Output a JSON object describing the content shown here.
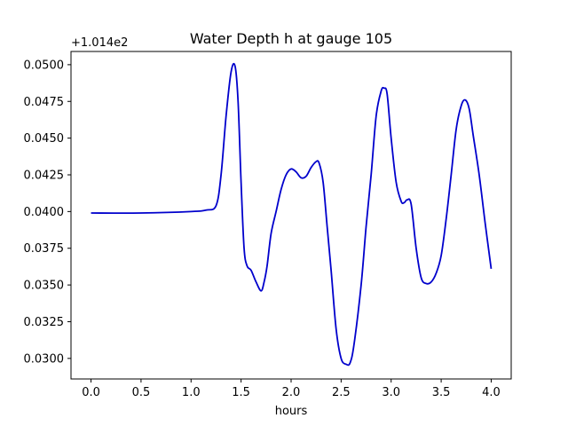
{
  "chart_data": {
    "type": "line",
    "title": "Water Depth h at gauge 105",
    "xlabel": "hours",
    "ylabel": "",
    "y_offset_label": "+1.014e2",
    "xlim": [
      -0.2,
      4.2
    ],
    "ylim": [
      0.0286,
      0.0509
    ],
    "x_ticks": [
      0.0,
      0.5,
      1.0,
      1.5,
      2.0,
      2.5,
      3.0,
      3.5,
      4.0
    ],
    "x_tick_labels": [
      "0.0",
      "0.5",
      "1.0",
      "1.5",
      "2.0",
      "2.5",
      "3.0",
      "3.5",
      "4.0"
    ],
    "y_ticks": [
      0.03,
      0.0325,
      0.035,
      0.0375,
      0.04,
      0.0425,
      0.045,
      0.0475,
      0.05
    ],
    "y_tick_labels": [
      "0.0300",
      "0.0325",
      "0.0350",
      "0.0375",
      "0.0400",
      "0.0425",
      "0.0450",
      "0.0475",
      "0.0500"
    ],
    "grid": false,
    "series": [
      {
        "color": "#0000cc",
        "x": [
          0.0,
          0.5,
          1.0,
          1.15,
          1.25,
          1.3,
          1.35,
          1.4,
          1.44,
          1.47,
          1.5,
          1.53,
          1.56,
          1.6,
          1.65,
          1.7,
          1.73,
          1.76,
          1.8,
          1.85,
          1.9,
          1.95,
          2.0,
          2.05,
          2.1,
          2.15,
          2.2,
          2.25,
          2.28,
          2.32,
          2.36,
          2.4,
          2.45,
          2.5,
          2.55,
          2.59,
          2.63,
          2.7,
          2.75,
          2.8,
          2.85,
          2.9,
          2.93,
          2.96,
          3.0,
          3.05,
          3.1,
          3.13,
          3.16,
          3.2,
          3.25,
          3.3,
          3.35,
          3.4,
          3.45,
          3.5,
          3.55,
          3.6,
          3.65,
          3.7,
          3.74,
          3.78,
          3.82,
          3.88,
          3.94,
          4.0
        ],
        "y": [
          0.0399,
          0.0399,
          0.04,
          0.0401,
          0.0404,
          0.0425,
          0.0465,
          0.0495,
          0.0499,
          0.0475,
          0.042,
          0.0375,
          0.0363,
          0.036,
          0.0352,
          0.0346,
          0.0352,
          0.0363,
          0.0385,
          0.04,
          0.0415,
          0.0425,
          0.0429,
          0.0427,
          0.0423,
          0.0424,
          0.043,
          0.0434,
          0.0433,
          0.042,
          0.039,
          0.036,
          0.032,
          0.03,
          0.0296,
          0.0297,
          0.031,
          0.035,
          0.039,
          0.0425,
          0.0465,
          0.0482,
          0.0484,
          0.048,
          0.045,
          0.042,
          0.0407,
          0.0406,
          0.0408,
          0.0405,
          0.0375,
          0.0355,
          0.0351,
          0.0352,
          0.0358,
          0.037,
          0.0395,
          0.0425,
          0.0456,
          0.0472,
          0.0476,
          0.047,
          0.0452,
          0.0425,
          0.0392,
          0.0361
        ]
      }
    ]
  }
}
